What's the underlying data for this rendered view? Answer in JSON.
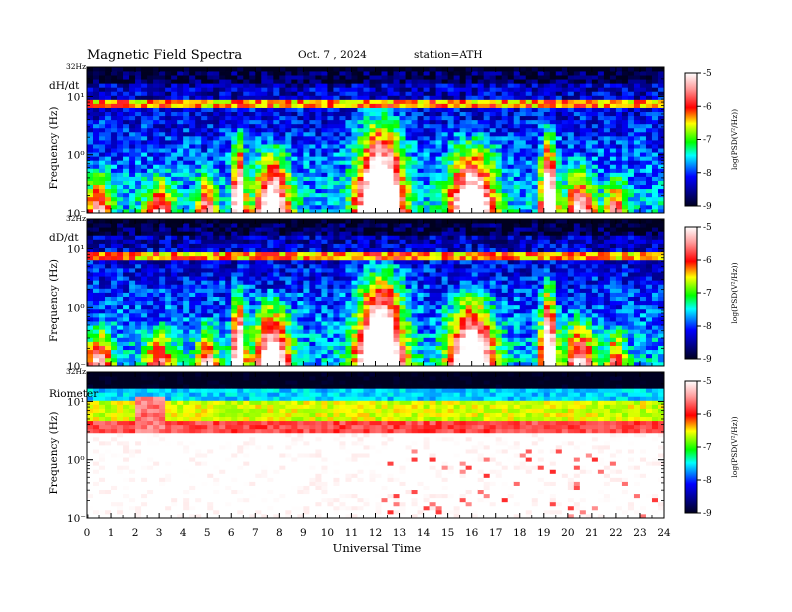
{
  "header": {
    "title": "Magnetic  Field  Spectra",
    "date": "Oct. 7  , 2024",
    "station": "station=ATH"
  },
  "chart_data": [
    {
      "type": "heatmap",
      "panel_label": "dH/dt",
      "ylabel": "Frequency  (Hz)",
      "yscale": "log",
      "ylim": [
        0.1,
        32
      ],
      "ytick_labels": [
        "10⁻¹",
        "10⁰",
        "10¹"
      ],
      "top_label": "32Hz",
      "xlim": [
        0,
        24
      ],
      "colorbar": {
        "min": -9,
        "max": -5,
        "ticks": [
          "-5",
          "-6",
          "-7",
          "-8",
          "-9"
        ],
        "label": "log(PSD(V²/Hz))"
      }
    },
    {
      "type": "heatmap",
      "panel_label": "dD/dt",
      "ylabel": "Frequency  (Hz)",
      "yscale": "log",
      "ylim": [
        0.1,
        32
      ],
      "ytick_labels": [
        "10⁻¹",
        "10⁰",
        "10¹"
      ],
      "top_label": "32Hz",
      "xlim": [
        0,
        24
      ],
      "colorbar": {
        "min": -9,
        "max": -5,
        "ticks": [
          "-5",
          "-6",
          "-7",
          "-8",
          "-9"
        ],
        "label": "log(PSD(V²/Hz))"
      }
    },
    {
      "type": "heatmap",
      "panel_label": "Riometer",
      "ylabel": "Frequency  (Hz)",
      "yscale": "log",
      "ylim": [
        0.1,
        32
      ],
      "ytick_labels": [
        "10⁻¹",
        "10⁰",
        "10¹"
      ],
      "top_label": "32Hz",
      "xlim": [
        0,
        24
      ],
      "colorbar": {
        "min": -9,
        "max": -5,
        "ticks": [
          "-5",
          "-6",
          "-7",
          "-8",
          "-9"
        ],
        "label": "log(PSD(V²/Hz))"
      }
    }
  ],
  "x_axis": {
    "label": "Universal  Time",
    "ticks": [
      "0",
      "1",
      "2",
      "3",
      "4",
      "5",
      "6",
      "7",
      "8",
      "9",
      "10",
      "11",
      "12",
      "13",
      "14",
      "15",
      "16",
      "17",
      "18",
      "19",
      "20",
      "21",
      "22",
      "23",
      "24"
    ]
  }
}
